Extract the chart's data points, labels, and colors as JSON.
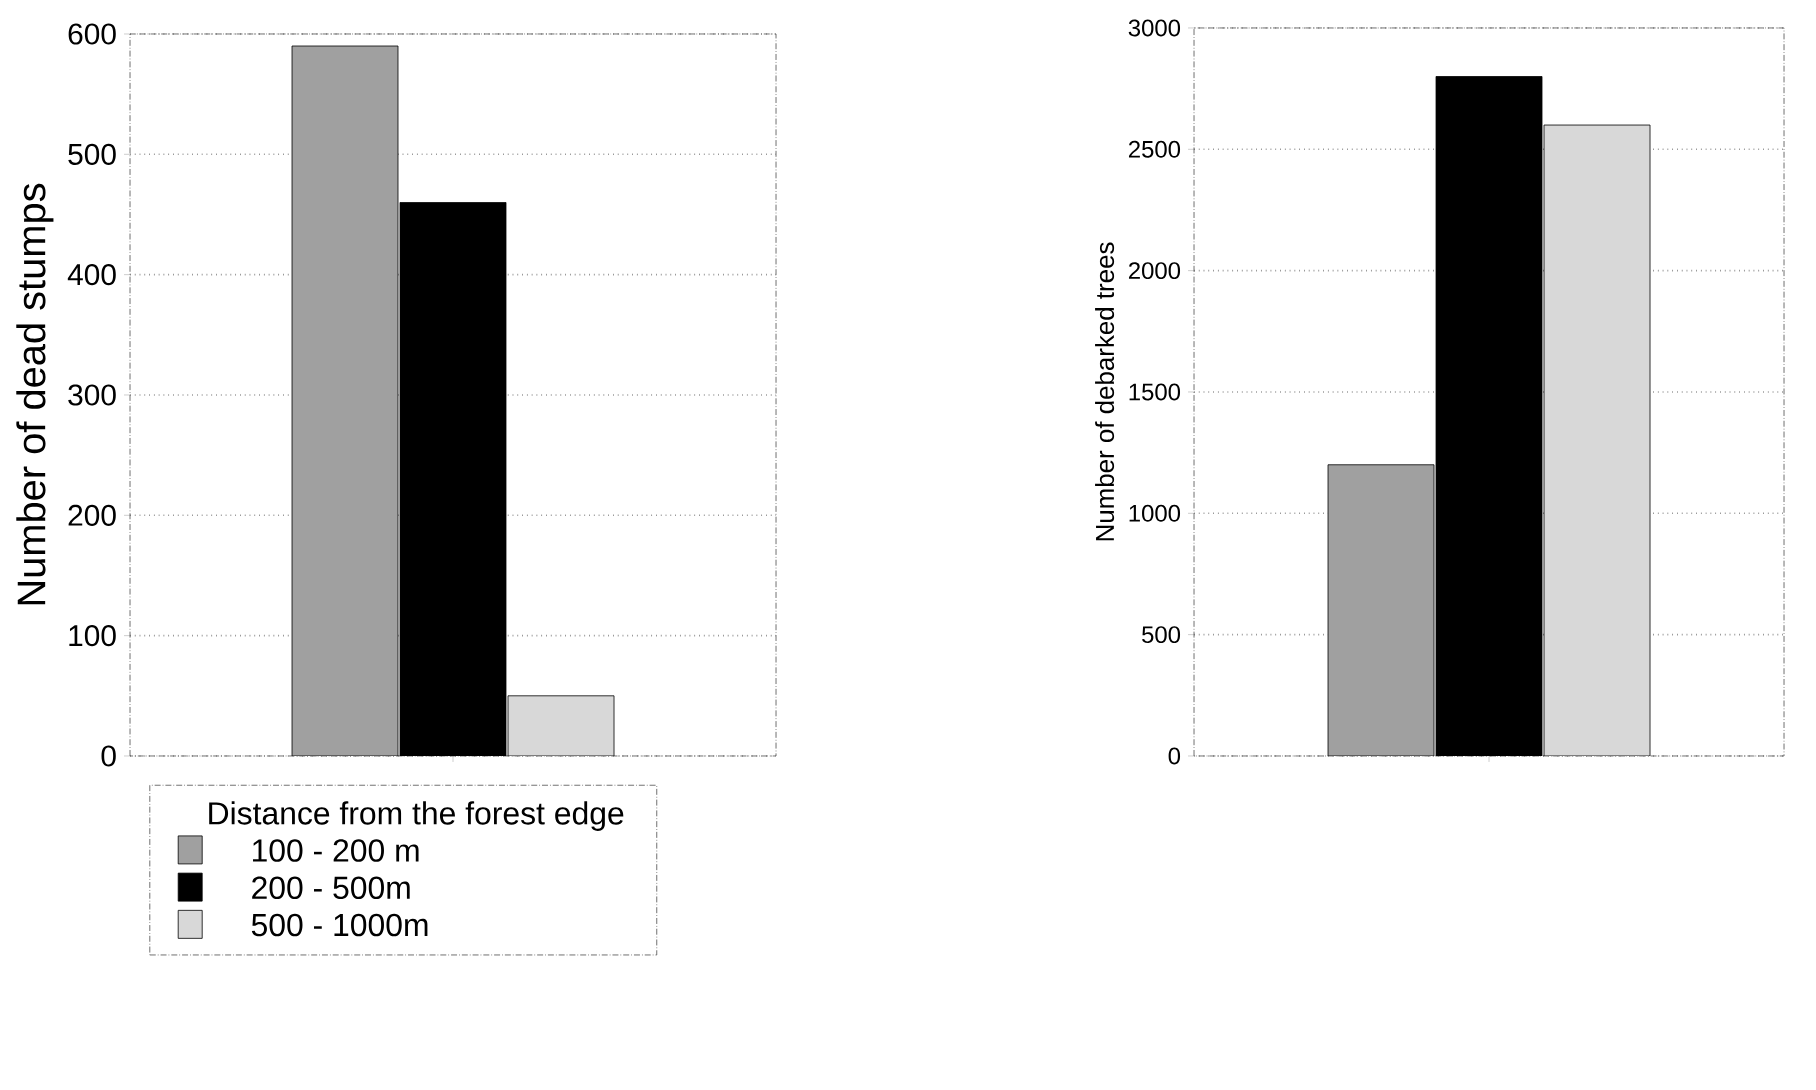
{
  "chart_data": [
    {
      "type": "bar",
      "categories": [
        null
      ],
      "ylabel": "Number of dead stumps",
      "ylim": [
        0,
        600
      ],
      "yticks": [
        0,
        100,
        200,
        300,
        400,
        500,
        600
      ],
      "grid": "y",
      "legend": "bottom",
      "legend_title": "Distance from the forest edge",
      "series": [
        {
          "name": "100 - 200 m",
          "color": "#a0a0a0",
          "values": [
            590
          ]
        },
        {
          "name": "200 - 500m",
          "color": "#000000",
          "values": [
            460
          ]
        },
        {
          "name": "500 - 1000m",
          "color": "#d8d8d8",
          "values": [
            50
          ]
        }
      ]
    },
    {
      "type": "bar",
      "categories": [
        null
      ],
      "ylabel": "Number of debarked trees",
      "ylim": [
        0,
        3000
      ],
      "yticks": [
        0,
        500,
        1000,
        1500,
        2000,
        2500,
        3000
      ],
      "grid": "y",
      "series": [
        {
          "color": "#a0a0a0",
          "values": [
            1200
          ]
        },
        {
          "color": "#000000",
          "values": [
            2800
          ]
        },
        {
          "color": "#d8d8d8",
          "values": [
            2600
          ]
        }
      ]
    }
  ]
}
